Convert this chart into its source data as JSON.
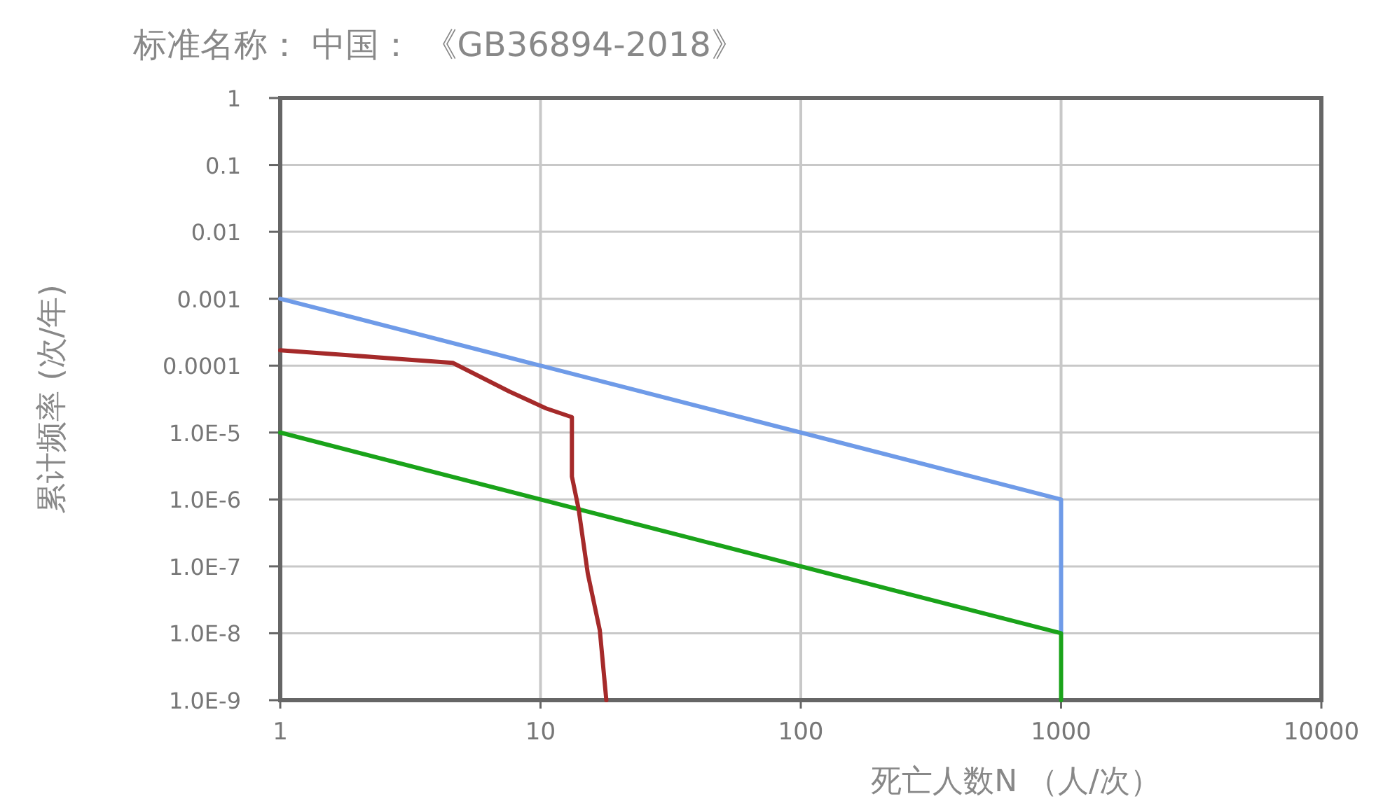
{
  "chart_data": {
    "type": "line",
    "title": "标准名称： 中国： 《GB36894-2018》",
    "xlabel": "死亡人数N （人/次）",
    "ylabel": "累计频率 (次/年)",
    "log": "xy",
    "grid": true,
    "xlim": [
      1,
      10000
    ],
    "ylim": [
      1e-09,
      1
    ],
    "xticks": [
      1,
      10,
      100,
      1000,
      10000
    ],
    "yticks": [
      1,
      0.1,
      0.01,
      0.001,
      0.0001,
      {
        "value": 1e-05,
        "label": "1.0E-5"
      },
      {
        "value": 1e-06,
        "label": "1.0E-6"
      },
      {
        "value": 1e-07,
        "label": "1.0E-7"
      },
      {
        "value": 1e-08,
        "label": "1.0E-8"
      },
      {
        "value": 1e-09,
        "label": "1.0E-9"
      }
    ],
    "series": [
      {
        "color": "#6f9be8",
        "x": [
          1,
          1000,
          1000
        ],
        "values": [
          0.001,
          1e-06,
          1e-08
        ]
      },
      {
        "color": "#1aa31a",
        "x": [
          1,
          1000,
          1000
        ],
        "values": [
          1e-05,
          1e-08,
          1e-09
        ]
      },
      {
        "color": "#a52a2a",
        "x": [
          1,
          4.6,
          7.6,
          10.5,
          13.2,
          13.2,
          14,
          15.2,
          16.9,
          17.9
        ],
        "values": [
          0.00017,
          0.00011,
          4.1e-05,
          2.3e-05,
          1.7e-05,
          2.2e-06,
          7.3e-07,
          7.7e-08,
          1.1e-08,
          1e-09
        ]
      }
    ]
  }
}
